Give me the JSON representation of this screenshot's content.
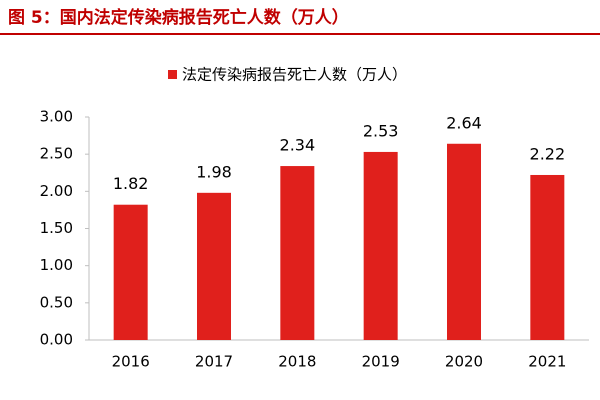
{
  "chart_data": {
    "type": "bar",
    "title": "图 5：国内法定传染病报告死亡人数（万人）",
    "categories": [
      "2016",
      "2017",
      "2018",
      "2019",
      "2020",
      "2021"
    ],
    "series": [
      {
        "name": "法定传染病报告死亡人数（万人）",
        "color": "#e0201c",
        "values": [
          1.82,
          1.98,
          2.34,
          2.53,
          2.64,
          2.22
        ]
      }
    ],
    "ylim": [
      0,
      3
    ],
    "yticks": [
      {
        "value": 0,
        "label": "0.00"
      },
      {
        "value": 0.5,
        "label": "0.50"
      },
      {
        "value": 1,
        "label": "1.00"
      },
      {
        "value": 1.5,
        "label": "1.50"
      },
      {
        "value": 2,
        "label": "2.00"
      },
      {
        "value": 2.5,
        "label": "2.50"
      },
      {
        "value": 3,
        "label": "3.00"
      }
    ],
    "grid": false,
    "legend": "top"
  }
}
